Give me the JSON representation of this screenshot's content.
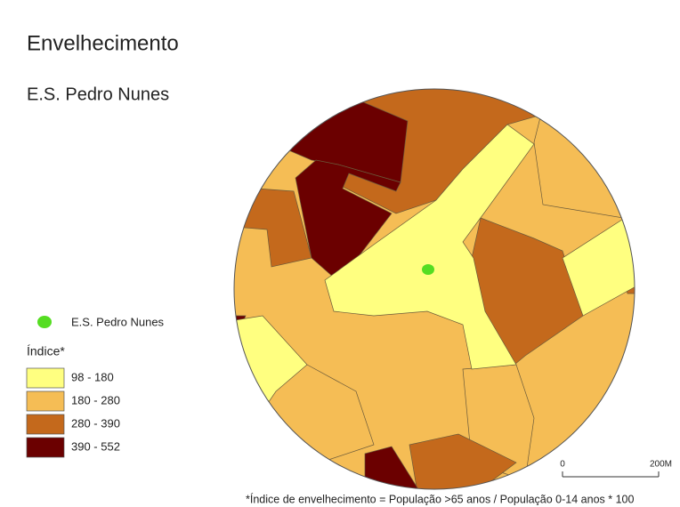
{
  "title": "Envelhecimento",
  "subtitle": "E.S. Pedro Nunes",
  "legend": {
    "point": {
      "label": "E.S. Pedro Nunes",
      "color": "#55dd22"
    },
    "heading": "Índice*",
    "classes": [
      {
        "label": "98 - 180",
        "color": "#ffff80"
      },
      {
        "label": "180 - 280",
        "color": "#f5bd55"
      },
      {
        "label": "280 - 390",
        "color": "#c4691c"
      },
      {
        "label": "390 - 552",
        "color": "#6b0000"
      }
    ]
  },
  "scale": {
    "start": "0",
    "end": "200M"
  },
  "footnote": "*Índice de envelhecimento = População >65 anos / População 0-14  anos * 100"
}
